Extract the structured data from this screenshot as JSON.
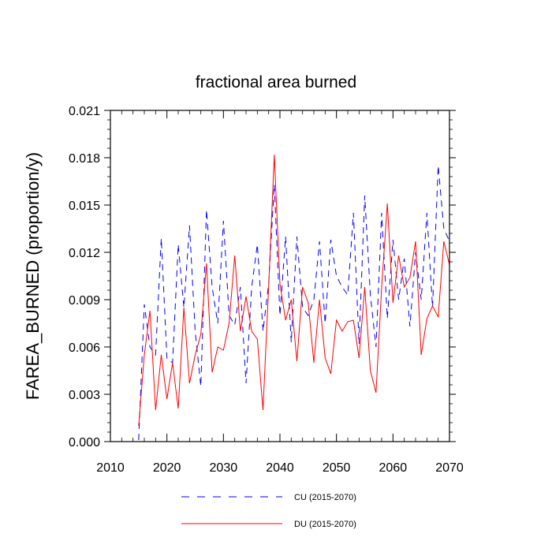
{
  "chart_data": {
    "type": "line",
    "title": "fractional area burned",
    "xlabel": "",
    "ylabel": "FAREA_BURNED  (proportion/y)",
    "xlim": [
      2010,
      2070
    ],
    "ylim": [
      0.0,
      0.021
    ],
    "xticks": [
      2010,
      2020,
      2030,
      2040,
      2050,
      2060,
      2070
    ],
    "xtick_labels": [
      "2010",
      "2020",
      "2030",
      "2040",
      "2050",
      "2060",
      "2070"
    ],
    "yticks": [
      0.0,
      0.003,
      0.006,
      0.009,
      0.012,
      0.015,
      0.018,
      0.021
    ],
    "ytick_labels": [
      "0.000",
      "0.003",
      "0.006",
      "0.009",
      "0.012",
      "0.015",
      "0.018",
      "0.021"
    ],
    "grid": false,
    "legend_position": "bottom",
    "x": [
      2015,
      2016,
      2017,
      2018,
      2019,
      2020,
      2021,
      2022,
      2023,
      2024,
      2025,
      2026,
      2027,
      2028,
      2029,
      2030,
      2031,
      2032,
      2033,
      2034,
      2035,
      2036,
      2037,
      2038,
      2039,
      2040,
      2041,
      2042,
      2043,
      2044,
      2045,
      2046,
      2047,
      2048,
      2049,
      2050,
      2051,
      2052,
      2053,
      2054,
      2055,
      2056,
      2057,
      2058,
      2059,
      2060,
      2061,
      2062,
      2063,
      2064,
      2065,
      2066,
      2067,
      2068,
      2069,
      2070
    ],
    "series": [
      {
        "name": "CU (2015-2070)",
        "color": "#0000ff",
        "dash": "dashed",
        "values": [
          0.0001,
          0.0087,
          0.006,
          0.0055,
          0.0129,
          0.0053,
          0.005,
          0.0125,
          0.0085,
          0.0137,
          0.007,
          0.0035,
          0.0147,
          0.0098,
          0.0075,
          0.014,
          0.008,
          0.0074,
          0.0098,
          0.0037,
          0.0098,
          0.0125,
          0.007,
          0.01,
          0.0163,
          0.008,
          0.013,
          0.0063,
          0.013,
          0.0085,
          0.008,
          0.009,
          0.0127,
          0.0075,
          0.0128,
          0.0105,
          0.0098,
          0.0093,
          0.0145,
          0.0062,
          0.0156,
          0.0093,
          0.006,
          0.0145,
          0.0078,
          0.0128,
          0.009,
          0.0116,
          0.0073,
          0.012,
          0.009,
          0.0145,
          0.0085,
          0.0175,
          0.0135,
          0.0127
        ]
      },
      {
        "name": "DU (2015-2070)",
        "color": "#ff0000",
        "dash": "solid",
        "values": [
          0.001,
          0.0055,
          0.0083,
          0.002,
          0.0055,
          0.0027,
          0.005,
          0.0021,
          0.0085,
          0.0037,
          0.0055,
          0.0068,
          0.0113,
          0.0044,
          0.006,
          0.0058,
          0.0075,
          0.0118,
          0.007,
          0.0092,
          0.007,
          0.0065,
          0.002,
          0.0098,
          0.0182,
          0.01,
          0.0077,
          0.009,
          0.0051,
          0.0098,
          0.0088,
          0.005,
          0.009,
          0.0053,
          0.0043,
          0.0077,
          0.007,
          0.0076,
          0.0077,
          0.0053,
          0.0098,
          0.0045,
          0.0031,
          0.0098,
          0.0151,
          0.0088,
          0.0118,
          0.0098,
          0.0104,
          0.0127,
          0.0055,
          0.0078,
          0.0086,
          0.0079,
          0.0127,
          0.0112
        ]
      }
    ]
  }
}
